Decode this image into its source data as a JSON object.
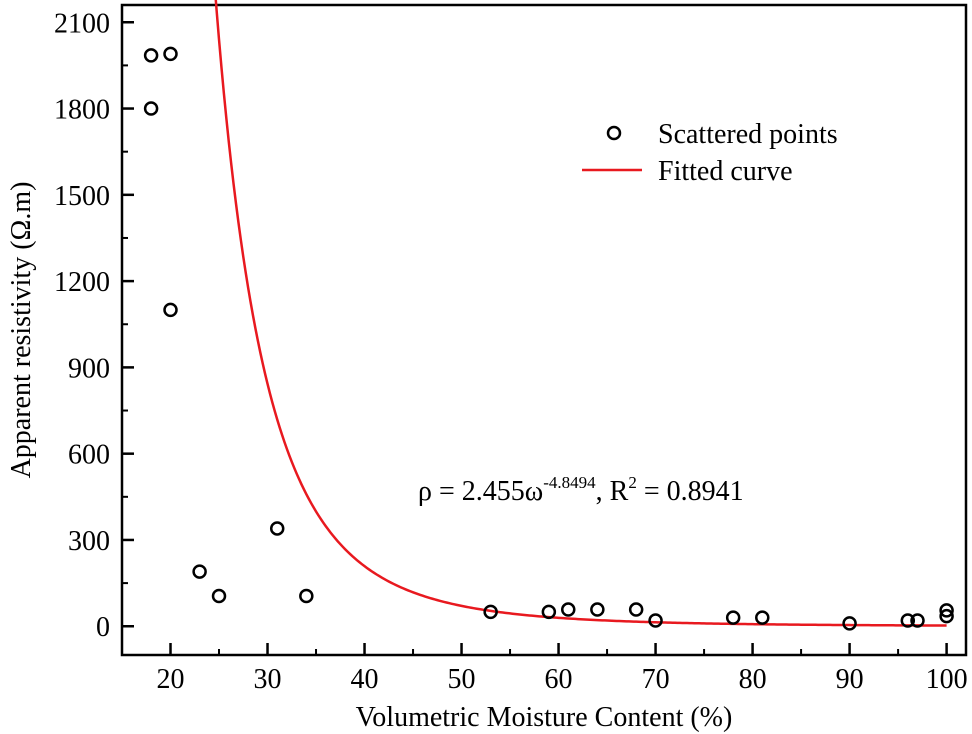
{
  "chart_data": {
    "type": "scatter",
    "xlabel": "Volumetric Moisture Content (%)",
    "ylabel": "Apparent resistivity (Ω.m)",
    "xlim": [
      15,
      102
    ],
    "ylim": [
      -100,
      2160
    ],
    "x_ticks": [
      20,
      30,
      40,
      50,
      60,
      70,
      80,
      90,
      100
    ],
    "y_ticks": [
      0,
      300,
      600,
      900,
      1200,
      1500,
      1800,
      2100
    ],
    "grid": false,
    "legend_position": "top-right",
    "series": [
      {
        "name": "Scattered points",
        "kind": "scatter",
        "color": "#000000",
        "points": [
          {
            "x": 18,
            "y": 1985
          },
          {
            "x": 20,
            "y": 1990
          },
          {
            "x": 18,
            "y": 1800
          },
          {
            "x": 20,
            "y": 1100
          },
          {
            "x": 23,
            "y": 190
          },
          {
            "x": 25,
            "y": 105
          },
          {
            "x": 31,
            "y": 340
          },
          {
            "x": 34,
            "y": 105
          },
          {
            "x": 53,
            "y": 50
          },
          {
            "x": 59,
            "y": 50
          },
          {
            "x": 61,
            "y": 58
          },
          {
            "x": 64,
            "y": 58
          },
          {
            "x": 68,
            "y": 58
          },
          {
            "x": 70,
            "y": 20
          },
          {
            "x": 78,
            "y": 30
          },
          {
            "x": 81,
            "y": 30
          },
          {
            "x": 90,
            "y": 10
          },
          {
            "x": 96,
            "y": 20
          },
          {
            "x": 97,
            "y": 20
          },
          {
            "x": 100,
            "y": 55
          },
          {
            "x": 100,
            "y": 35
          }
        ]
      },
      {
        "name": "Fitted curve",
        "kind": "line",
        "color": "#e8191f",
        "model": {
          "coefficient": 2.455,
          "exponent": -4.8494,
          "x_domain": [
            18,
            100
          ]
        }
      }
    ],
    "annotation": {
      "lhs": "ρ = 2.455ω",
      "exponent": "-4.8494",
      "middle": ", R",
      "r2_sup": "2",
      "rhs": " = 0.8941"
    }
  }
}
